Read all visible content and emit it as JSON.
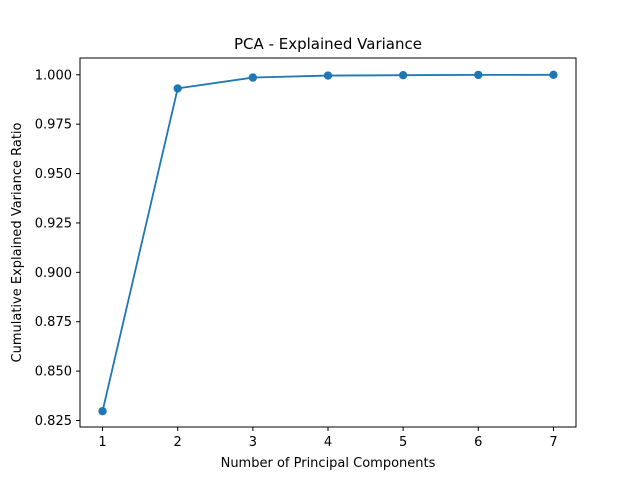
{
  "chart_data": {
    "type": "line",
    "title": "PCA - Explained Variance",
    "xlabel": "Number of Principal Components",
    "ylabel": "Cumulative Explained Variance Ratio",
    "x": [
      1,
      2,
      3,
      4,
      5,
      6,
      7
    ],
    "series": [
      {
        "values": [
          0.8297,
          0.9931,
          0.9986,
          0.9996,
          0.9998,
          0.99995,
          1.0
        ],
        "color": "#1f77b4",
        "marker": "circle"
      }
    ],
    "xlim": [
      0.7,
      7.3
    ],
    "ylim": [
      0.8217,
      1.0085
    ],
    "xticks": [
      "1",
      "2",
      "3",
      "4",
      "5",
      "6",
      "7"
    ],
    "yticks": [
      "0.825",
      "0.850",
      "0.875",
      "0.900",
      "0.925",
      "0.950",
      "0.975",
      "1.000"
    ],
    "grid": false
  }
}
